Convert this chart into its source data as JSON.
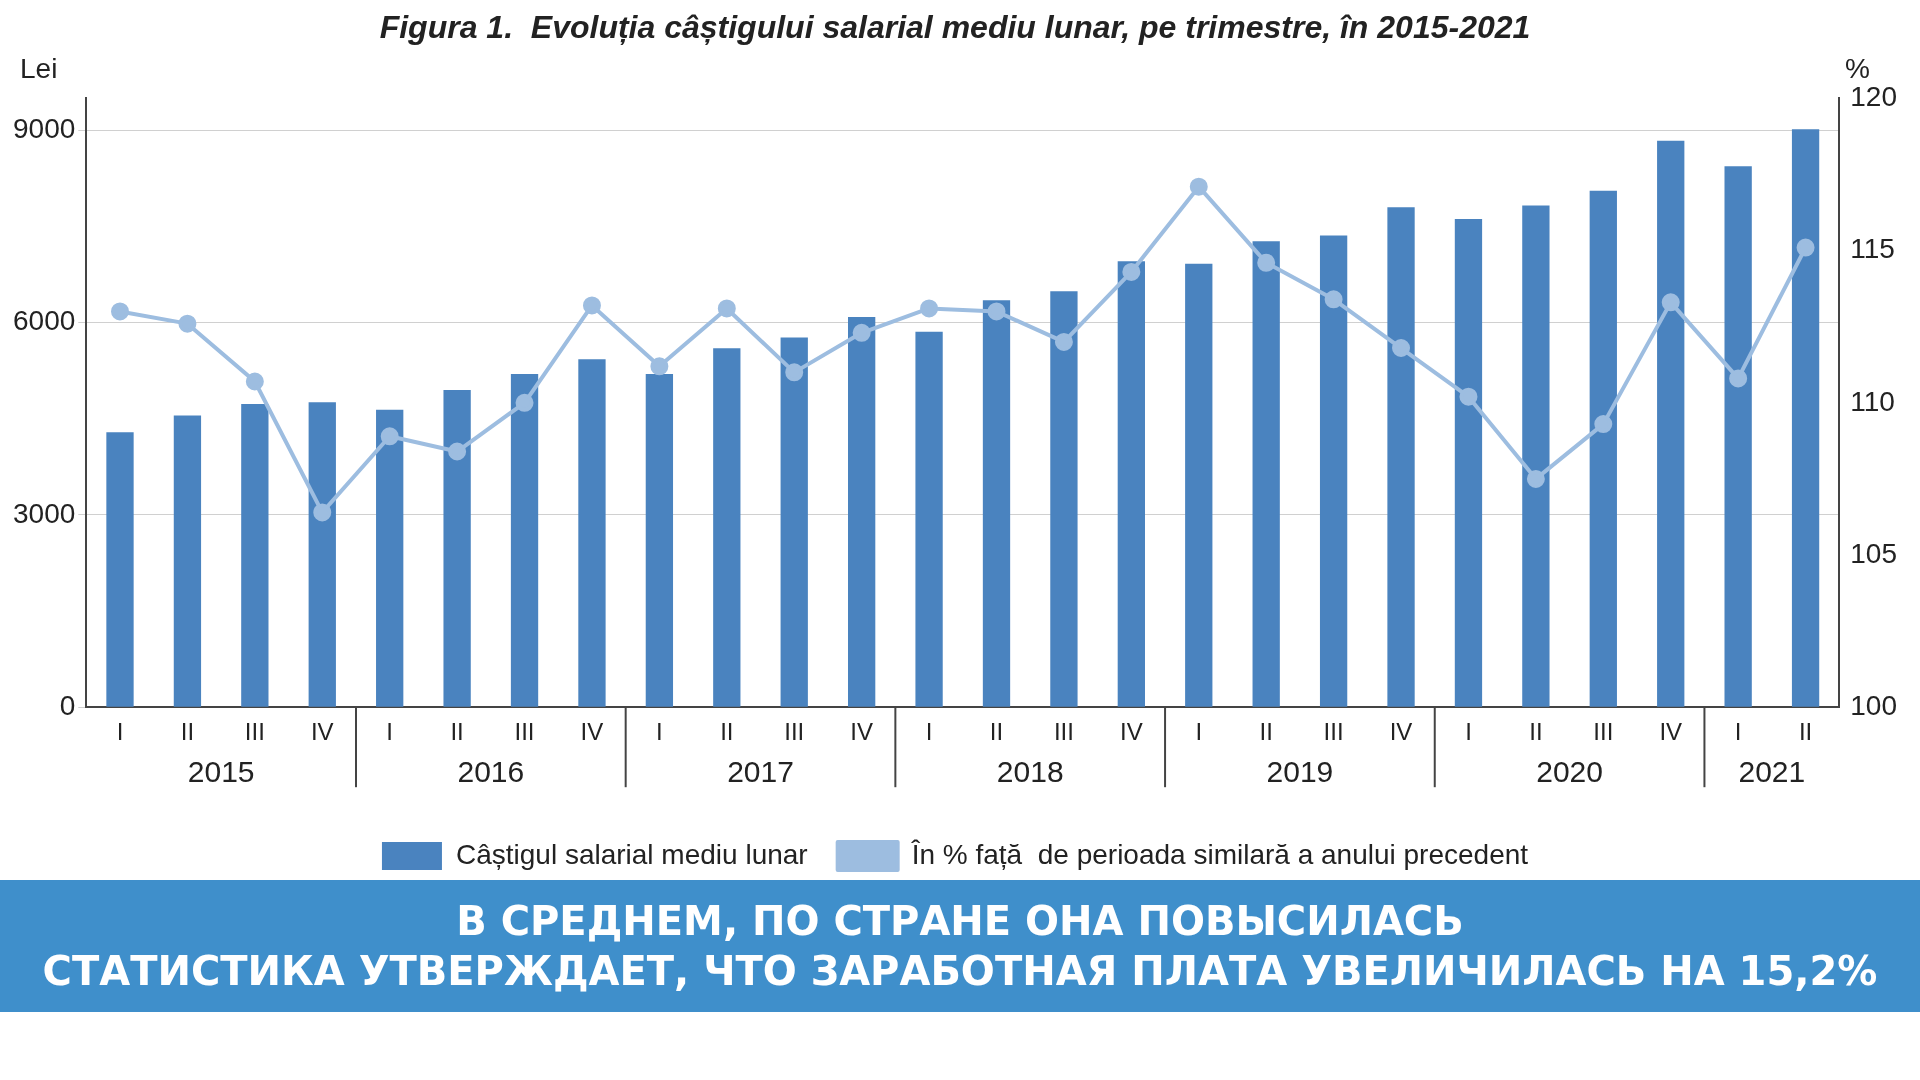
{
  "chart_data": {
    "type": "bar",
    "title": "Figura 1.  Evoluția câștigului salarial mediu lunar, pe trimestre, în 2015-2021",
    "ylabel": "Lei",
    "y2label": "%",
    "categories": [
      "I",
      "II",
      "III",
      "IV",
      "I",
      "II",
      "III",
      "IV",
      "I",
      "II",
      "III",
      "IV",
      "I",
      "II",
      "III",
      "IV",
      "I",
      "II",
      "III",
      "IV",
      "I",
      "II",
      "III",
      "IV",
      "I",
      "II"
    ],
    "series": [
      {
        "name": "Câștigul salarial mediu lunar",
        "color": "#4a83bf",
        "values": [
          4290,
          4550,
          4730,
          4760,
          4640,
          4950,
          5200,
          5430,
          5200,
          5600,
          5770,
          6090,
          5860,
          6350,
          6490,
          6960,
          6920,
          7270,
          7360,
          7800,
          7620,
          7830,
          8060,
          8840,
          8440,
          9020
        ]
      },
      {
        "type": "line",
        "axis": "y2",
        "name": "În % față  de perioada similară a anului precedent",
        "color": "#9dbde0",
        "values": [
          113.0,
          112.6,
          110.7,
          106.4,
          108.9,
          108.4,
          110.0,
          113.2,
          111.2,
          113.1,
          111.0,
          112.3,
          113.1,
          113.0,
          112.0,
          114.3,
          117.1,
          114.6,
          113.4,
          111.8,
          110.2,
          107.5,
          109.3,
          113.3,
          110.8,
          115.1
        ]
      }
    ],
    "ylim": [
      0,
      9500
    ],
    "yticks": [
      0,
      3000,
      6000,
      9000
    ],
    "y2lim": [
      100,
      120
    ],
    "y2ticks": [
      100,
      105,
      110,
      115,
      120
    ],
    "grid": "y",
    "legend": "bottom",
    "marker": "circle",
    "annotations": [
      "2015",
      "2016",
      "2017",
      "2018",
      "2019",
      "2020",
      "2021",
      "В СРЕДНЕМ, ПО СТРАНЕ ОНА ПОВЫСИЛАСЬ",
      "СТАТИСТИКА УТВЕРЖДАЕТ, ЧТО ЗАРАБОТНАЯ ПЛАТА УВЕЛИЧИЛАСЬ НА 15,2%"
    ]
  }
}
